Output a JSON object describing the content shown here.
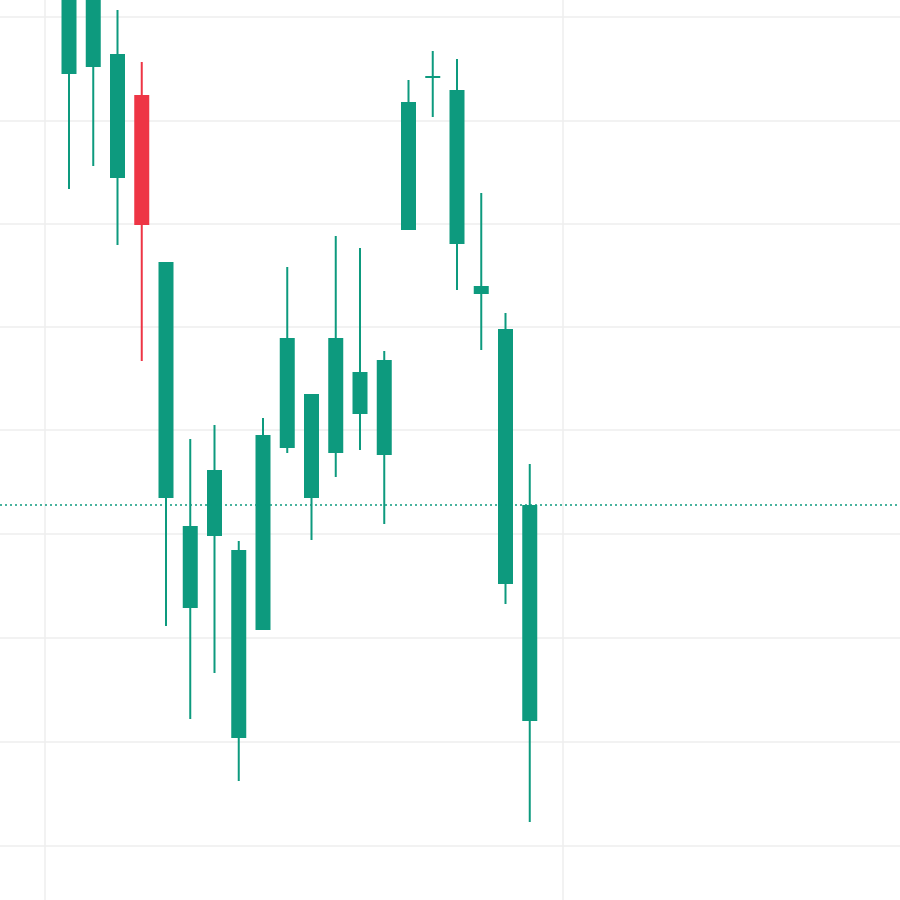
{
  "chart_data": {
    "type": "candlestick",
    "ylim": [
      0,
      900
    ],
    "grid": true,
    "candles": [
      {
        "open": 826,
        "high": 910,
        "low": 711,
        "close": 910
      },
      {
        "open": 833,
        "high": 910,
        "low": 734,
        "close": 910
      },
      {
        "open": 722,
        "high": 890,
        "low": 655,
        "close": 846
      },
      {
        "open": 805,
        "high": 838,
        "low": 539,
        "close": 675
      },
      {
        "open": 402,
        "high": 638,
        "low": 274,
        "close": 638
      },
      {
        "open": 292,
        "high": 461,
        "low": 181,
        "close": 374
      },
      {
        "open": 364,
        "high": 475,
        "low": 227,
        "close": 430
      },
      {
        "open": 162,
        "high": 359,
        "low": 119,
        "close": 350
      },
      {
        "open": 270,
        "high": 482,
        "low": 270,
        "close": 465
      },
      {
        "open": 452,
        "high": 633,
        "low": 447,
        "close": 562
      },
      {
        "open": 402,
        "high": 506,
        "low": 360,
        "close": 506
      },
      {
        "open": 447,
        "high": 664,
        "low": 423,
        "close": 562
      },
      {
        "open": 486,
        "high": 652,
        "low": 450,
        "close": 528
      },
      {
        "open": 445,
        "high": 549,
        "low": 376,
        "close": 540
      },
      {
        "open": 670,
        "high": 820,
        "low": 670,
        "close": 798
      },
      {
        "open": 822,
        "high": 849,
        "low": 783,
        "close": 824
      },
      {
        "open": 656,
        "high": 841,
        "low": 610,
        "close": 810
      },
      {
        "open": 606,
        "high": 707,
        "low": 550,
        "close": 614
      },
      {
        "open": 316,
        "high": 587,
        "low": 296,
        "close": 571
      },
      {
        "open": 179,
        "high": 436,
        "low": 78,
        "close": 395
      }
    ],
    "last_price": 395
  },
  "colors": {
    "up": "#0d9a7e",
    "down": "#ee3545",
    "grid": "#eeeeee",
    "price_line": "#0d9a7e",
    "background": "#ffffff"
  }
}
